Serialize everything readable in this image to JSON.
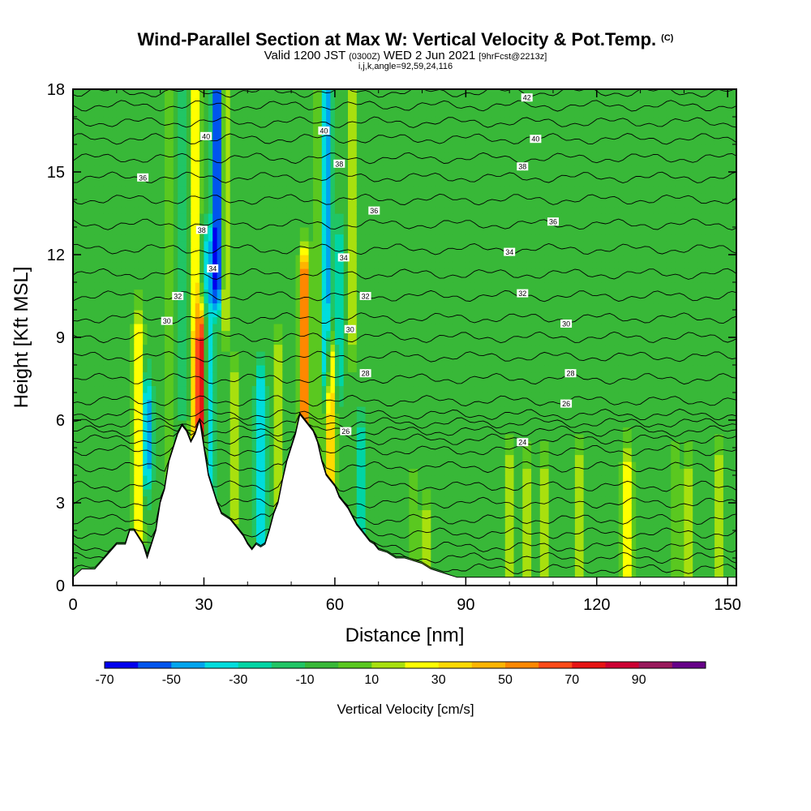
{
  "title": {
    "main": "Wind-Parallel Section at Max W: Vertical Velocity & Pot.Temp.",
    "copyright": "(C)",
    "valid_prefix": "Valid 1200 JST",
    "valid_utc": "(0300Z)",
    "valid_date": "WED 2 Jun 2021",
    "forecast": "[9hrFcst@2213z]",
    "indices": "i,j,k,angle=92,59,24,116"
  },
  "chart_data": {
    "type": "heatmap",
    "xlabel": "Distance [nm]",
    "ylabel": "Height [Kft MSL]",
    "xlim": [
      0,
      152
    ],
    "ylim": [
      0,
      18
    ],
    "x_ticks": [
      0,
      30,
      60,
      90,
      120,
      150
    ],
    "y_ticks": [
      0,
      3,
      6,
      9,
      12,
      15,
      18
    ],
    "colorbar": {
      "title": "Vertical Velocity [cm/s]",
      "tick_labels": [
        -70,
        -50,
        -30,
        -10,
        10,
        30,
        50,
        70,
        90
      ],
      "bounds": [
        -70,
        -60,
        -50,
        -40,
        -30,
        -20,
        -10,
        0,
        10,
        20,
        30,
        40,
        50,
        60,
        70,
        80,
        90,
        100
      ],
      "colors": [
        "#0000ee",
        "#0055ee",
        "#00a5ee",
        "#00dddd",
        "#00d5a5",
        "#21c565",
        "#38b838",
        "#5ac820",
        "#a8e00e",
        "#ffff00",
        "#ffda00",
        "#ffb400",
        "#ff8800",
        "#ff4a18",
        "#e61414",
        "#cc0033",
        "#99195c",
        "#660088"
      ]
    },
    "background_velocity_cm_s": -5,
    "velocity_features": [
      {
        "x": 8,
        "y": [
          2,
          9
        ],
        "w": 0
      },
      {
        "x": 15,
        "y": [
          2,
          9
        ],
        "w": 40
      },
      {
        "x": 17,
        "y": [
          4.5,
          6.5
        ],
        "w": -45
      },
      {
        "x": 22,
        "y": [
          4,
          18
        ],
        "w": 15
      },
      {
        "x": 25,
        "y": [
          7,
          18
        ],
        "w": -15
      },
      {
        "x": 28,
        "y": [
          3,
          18
        ],
        "w": 40
      },
      {
        "x": 29.5,
        "y": [
          5,
          9
        ],
        "w": 75
      },
      {
        "x": 31,
        "y": [
          3,
          12
        ],
        "w": -35
      },
      {
        "x": 33,
        "y": [
          11,
          18
        ],
        "w": -65
      },
      {
        "x": 35,
        "y": [
          10,
          18
        ],
        "w": 30
      },
      {
        "x": 37,
        "y": [
          3,
          7
        ],
        "w": 25
      },
      {
        "x": 43,
        "y": [
          2,
          7
        ],
        "w": -35
      },
      {
        "x": 47,
        "y": [
          2,
          8
        ],
        "w": 25
      },
      {
        "x": 53,
        "y": [
          6,
          11
        ],
        "w": 75
      },
      {
        "x": 56,
        "y": [
          4,
          18
        ],
        "w": 15
      },
      {
        "x": 58,
        "y": [
          8,
          18
        ],
        "w": -45
      },
      {
        "x": 59,
        "y": [
          4,
          8
        ],
        "w": 50
      },
      {
        "x": 61,
        "y": [
          8,
          12
        ],
        "w": -25
      },
      {
        "x": 64,
        "y": [
          9,
          18
        ],
        "w": 20
      },
      {
        "x": 66,
        "y": [
          2,
          5
        ],
        "w": -25
      },
      {
        "x": 78,
        "y": [
          1,
          3
        ],
        "w": 15
      },
      {
        "x": 81,
        "y": [
          1,
          2
        ],
        "w": 25
      },
      {
        "x": 100,
        "y": [
          0.5,
          4
        ],
        "w": 25
      },
      {
        "x": 104,
        "y": [
          0.5,
          4
        ],
        "w": 20
      },
      {
        "x": 108,
        "y": [
          0.5,
          4
        ],
        "w": 20
      },
      {
        "x": 116,
        "y": [
          0.5,
          4
        ],
        "w": 25
      },
      {
        "x": 127,
        "y": [
          0.5,
          4
        ],
        "w": 40
      },
      {
        "x": 138,
        "y": [
          0.5,
          4
        ],
        "w": 15
      },
      {
        "x": 141,
        "y": [
          0.5,
          4
        ],
        "w": 20
      },
      {
        "x": 148,
        "y": [
          0.5,
          4
        ],
        "w": 25
      }
    ],
    "terrain": {
      "x": [
        0,
        2,
        5,
        10,
        12,
        13,
        14,
        16,
        17,
        18,
        19,
        20,
        21,
        22,
        23,
        24,
        25,
        26,
        27,
        28,
        29,
        30,
        31,
        32,
        33,
        34,
        36,
        37,
        38,
        39,
        40,
        41,
        42,
        43,
        44,
        45,
        46,
        47,
        48,
        49,
        50,
        51,
        52,
        53,
        54,
        55,
        56,
        57,
        58,
        59,
        60,
        61,
        62,
        63,
        64,
        65,
        66,
        67,
        68,
        69,
        70,
        72,
        74,
        76,
        78,
        80,
        82,
        84,
        86,
        88,
        90,
        95,
        100,
        110,
        120,
        130,
        140,
        150,
        152
      ],
      "y": [
        0.3,
        0.6,
        0.6,
        1.5,
        1.5,
        2.0,
        2.0,
        1.5,
        1.0,
        1.5,
        2.0,
        3.0,
        3.5,
        4.5,
        5.0,
        5.5,
        5.8,
        5.6,
        5.2,
        5.5,
        6.0,
        5.0,
        4.0,
        3.5,
        3.0,
        2.6,
        2.4,
        2.2,
        2.0,
        1.8,
        1.5,
        1.3,
        1.5,
        1.4,
        1.5,
        2.0,
        2.6,
        3.0,
        3.8,
        4.5,
        5.0,
        5.5,
        6.2,
        6.0,
        5.8,
        5.6,
        5.2,
        4.5,
        4.0,
        3.8,
        3.6,
        3.2,
        3.0,
        2.8,
        2.5,
        2.2,
        2.0,
        1.8,
        1.6,
        1.5,
        1.3,
        1.2,
        1.0,
        1.0,
        0.9,
        0.8,
        0.6,
        0.5,
        0.4,
        0.3,
        0.3,
        0.3,
        0.3,
        0.3,
        0.3,
        0.3,
        0.3,
        0.3,
        0.3
      ]
    },
    "theta_contours": {
      "levels": [
        14,
        15,
        16,
        17,
        18,
        19,
        20,
        21,
        22,
        23,
        24,
        25,
        26,
        27,
        28,
        29,
        30,
        31,
        32,
        33,
        34,
        35,
        36,
        37,
        38,
        39,
        40,
        41,
        42
      ],
      "height_by_level_kft": [
        0.6,
        1.0,
        1.4,
        1.9,
        2.4,
        3.0,
        3.6,
        4.3,
        4.9,
        5.3,
        5.6,
        5.9,
        6.2,
        6.7,
        7.5,
        8.3,
        9.0,
        9.7,
        10.5,
        11.3,
        12.2,
        13.1,
        14.0,
        14.8,
        15.5,
        16.2,
        16.8,
        17.4,
        17.9
      ],
      "labeled": [
        {
          "text": "42",
          "x": 104,
          "y": 17.7
        },
        {
          "text": "40",
          "x": 106,
          "y": 16.2
        },
        {
          "text": "38",
          "x": 103,
          "y": 15.2
        },
        {
          "text": "36",
          "x": 110,
          "y": 13.2
        },
        {
          "text": "34",
          "x": 100,
          "y": 12.1
        },
        {
          "text": "32",
          "x": 103,
          "y": 10.6
        },
        {
          "text": "30",
          "x": 113,
          "y": 9.5
        },
        {
          "text": "28",
          "x": 114,
          "y": 7.7
        },
        {
          "text": "26",
          "x": 113,
          "y": 6.6
        },
        {
          "text": "24",
          "x": 103,
          "y": 5.2
        },
        {
          "text": "40",
          "x": 30.5,
          "y": 16.3
        },
        {
          "text": "36",
          "x": 16,
          "y": 14.8
        },
        {
          "text": "38",
          "x": 29.5,
          "y": 12.9
        },
        {
          "text": "34",
          "x": 32,
          "y": 11.5
        },
        {
          "text": "32",
          "x": 24,
          "y": 10.5
        },
        {
          "text": "30",
          "x": 21.5,
          "y": 9.6
        },
        {
          "text": "40",
          "x": 57.5,
          "y": 16.5
        },
        {
          "text": "38",
          "x": 61,
          "y": 15.3
        },
        {
          "text": "36",
          "x": 69,
          "y": 13.6
        },
        {
          "text": "34",
          "x": 62,
          "y": 11.9
        },
        {
          "text": "32",
          "x": 67,
          "y": 10.5
        },
        {
          "text": "30",
          "x": 63.5,
          "y": 9.3
        },
        {
          "text": "28",
          "x": 67,
          "y": 7.7
        },
        {
          "text": "26",
          "x": 62.5,
          "y": 5.6
        }
      ]
    }
  }
}
